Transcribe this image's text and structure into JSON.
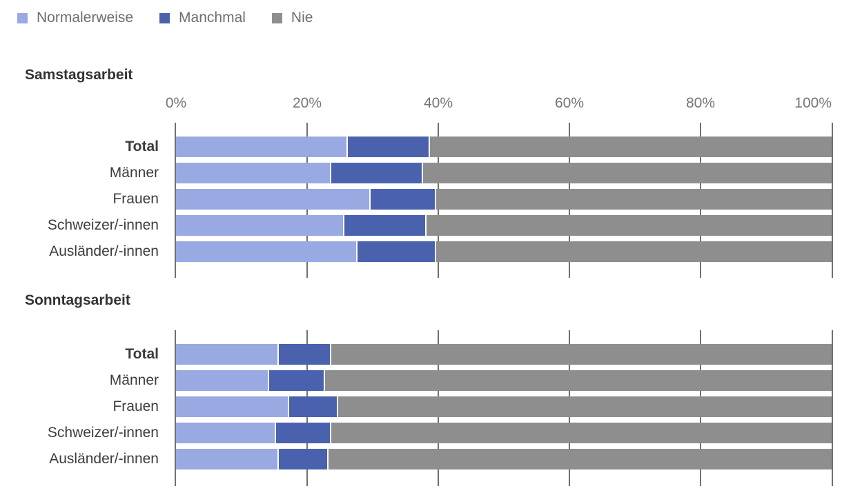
{
  "legend": {
    "items": [
      {
        "label": "Normalerweise",
        "color": "#99A9E2"
      },
      {
        "label": "Manchmal",
        "color": "#4A62AE"
      },
      {
        "label": "Nie",
        "color": "#8E8E8E"
      }
    ]
  },
  "chart_data": {
    "type": "bar",
    "stacked": true,
    "orientation": "horizontal",
    "unit": "percent",
    "xlim": [
      0,
      100
    ],
    "x_ticks": [
      "0%",
      "20%",
      "40%",
      "60%",
      "80%",
      "100%"
    ],
    "gridline_pcts": [
      0,
      20,
      40,
      60,
      80,
      100
    ],
    "grid": true,
    "legend_position": "top-left",
    "series_names": [
      "Normalerweise",
      "Manchmal",
      "Nie"
    ],
    "colors": [
      "#99A9E2",
      "#4A62AE",
      "#8E8E8E"
    ],
    "sections": [
      {
        "title": "Samstagsarbeit",
        "rows": [
          {
            "category": "Total",
            "bold": true,
            "values": [
              26,
              12.5,
              61.5
            ]
          },
          {
            "category": "Männer",
            "bold": false,
            "values": [
              23.5,
              14,
              62.5
            ]
          },
          {
            "category": "Frauen",
            "bold": false,
            "values": [
              29.5,
              10,
              60.5
            ]
          },
          {
            "category": "Schweizer/-innen",
            "bold": false,
            "values": [
              25.5,
              12.5,
              62
            ]
          },
          {
            "category": "Ausländer/-innen",
            "bold": false,
            "values": [
              27.5,
              12,
              60.5
            ]
          }
        ]
      },
      {
        "title": "Sonntagsarbeit",
        "rows": [
          {
            "category": "Total",
            "bold": true,
            "values": [
              15.5,
              8,
              76.5
            ]
          },
          {
            "category": "Männer",
            "bold": false,
            "values": [
              14,
              8.5,
              77.5
            ]
          },
          {
            "category": "Frauen",
            "bold": false,
            "values": [
              17,
              7.5,
              75.5
            ]
          },
          {
            "category": "Schweizer/-innen",
            "bold": false,
            "values": [
              15,
              8.5,
              76.5
            ]
          },
          {
            "category": "Ausländer/-innen",
            "bold": false,
            "values": [
              15.5,
              7.5,
              77
            ]
          }
        ]
      }
    ]
  }
}
